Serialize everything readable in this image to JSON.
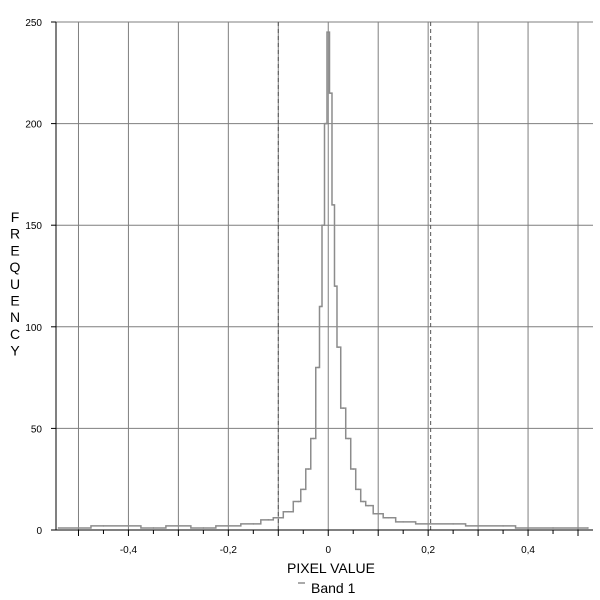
{
  "chart_data": {
    "type": "line",
    "title": "",
    "xlabel": "PIXEL VALUE",
    "ylabel": "FREQUENCY",
    "xlim": [
      -0.545,
      0.53
    ],
    "ylim": [
      0,
      250
    ],
    "x_ticks": [
      -0.4,
      -0.2,
      0,
      0.2,
      0.4
    ],
    "x_tick_labels": [
      "-0,4",
      "-0,2",
      "0",
      "0,2",
      "0,4"
    ],
    "y_ticks": [
      0,
      50,
      100,
      150,
      200,
      250
    ],
    "y_tick_labels": [
      "0",
      "50",
      "100",
      "150",
      "200",
      "250"
    ],
    "grid": true,
    "legend": "bottom-center",
    "reference_lines": [
      -0.1,
      0.205
    ],
    "colors": {
      "series": "#8c8c8c",
      "grid": "#7f7f7f",
      "reference": "#555555",
      "axis": "#000000"
    },
    "series": [
      {
        "name": "Band 1",
        "x": [
          -0.54,
          -0.5,
          -0.45,
          -0.4,
          -0.35,
          -0.3,
          -0.25,
          -0.2,
          -0.15,
          -0.12,
          -0.1,
          -0.08,
          -0.06,
          -0.05,
          -0.04,
          -0.03,
          -0.02,
          -0.015,
          -0.01,
          -0.005,
          0,
          0.005,
          0.01,
          0.015,
          0.02,
          0.03,
          0.04,
          0.05,
          0.06,
          0.07,
          0.08,
          0.1,
          0.12,
          0.15,
          0.2,
          0.25,
          0.3,
          0.35,
          0.4,
          0.45,
          0.5,
          0.52
        ],
        "y": [
          1,
          1,
          2,
          2,
          1,
          2,
          1,
          2,
          3,
          5,
          6,
          9,
          14,
          20,
          30,
          45,
          80,
          110,
          150,
          200,
          245,
          215,
          160,
          120,
          90,
          60,
          45,
          30,
          20,
          14,
          12,
          8,
          6,
          4,
          3,
          3,
          2,
          2,
          1,
          1,
          1,
          1
        ]
      }
    ]
  }
}
